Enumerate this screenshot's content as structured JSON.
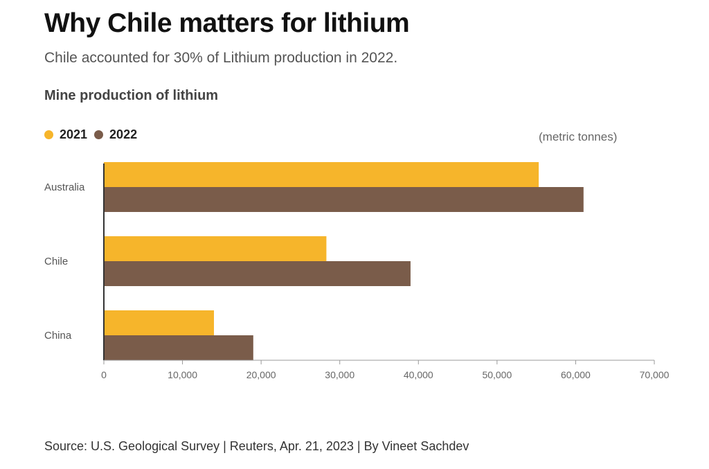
{
  "title": "Why Chile matters for lithium",
  "subtitle": "Chile accounted for 30% of Lithium production in 2022.",
  "chart_heading": "Mine production of lithium",
  "unit_label": "(metric tonnes)",
  "source": "Source: U.S. Geological Survey | Reuters, Apr. 21, 2023 | By Vineet Sachdev",
  "colors": {
    "series_2021": "#f6b52b",
    "series_2022": "#7a5c4a",
    "axis": "#999999",
    "tick_text": "#666666",
    "category_text": "#555555"
  },
  "chart_data": {
    "type": "bar",
    "orientation": "horizontal",
    "categories": [
      "Australia",
      "Chile",
      "China"
    ],
    "series": [
      {
        "name": "2021",
        "values": [
          55300,
          28300,
          14000
        ]
      },
      {
        "name": "2022",
        "values": [
          61000,
          39000,
          19000
        ]
      }
    ],
    "xlim": [
      0,
      70000
    ],
    "xticks": [
      "0",
      "10,000",
      "20,000",
      "30,000",
      "40,000",
      "50,000",
      "60,000",
      "70,000"
    ],
    "xtick_values": [
      0,
      10000,
      20000,
      30000,
      40000,
      50000,
      60000,
      70000
    ],
    "legend_position": "top-left",
    "grid": false
  }
}
